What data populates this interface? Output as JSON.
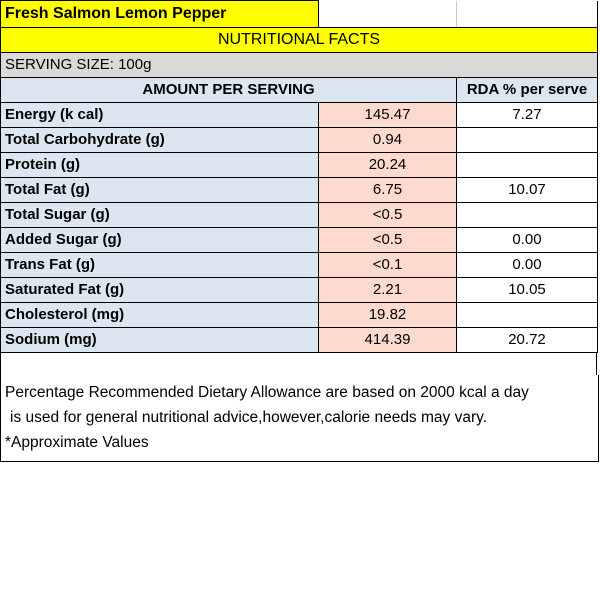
{
  "product_name": "Fresh Salmon Lemon Pepper",
  "section_title": "NUTRITIONAL FACTS",
  "serving_size": "SERVING SIZE: 100g",
  "columns": {
    "amount": "AMOUNT PER SERVING",
    "rda": "RDA % per serve"
  },
  "rows": [
    {
      "label": "Energy (k cal)",
      "value": "145.47",
      "rda": "7.27"
    },
    {
      "label": "Total Carbohydrate (g)",
      "value": "0.94",
      "rda": ""
    },
    {
      "label": "Protein (g)",
      "value": "20.24",
      "rda": ""
    },
    {
      "label": "Total Fat (g)",
      "value": "6.75",
      "rda": "10.07"
    },
    {
      "label": "Total Sugar (g)",
      "value": "<0.5",
      "rda": ""
    },
    {
      "label": "Added Sugar (g)",
      "value": "<0.5",
      "rda": "0.00"
    },
    {
      "label": "Trans Fat (g)",
      "value": "<0.1",
      "rda": "0.00"
    },
    {
      "label": "Saturated Fat (g)",
      "value": "2.21",
      "rda": "10.05"
    },
    {
      "label": "Cholesterol (mg)",
      "value": "19.82",
      "rda": ""
    },
    {
      "label": "Sodium (mg)",
      "value": "414.39",
      "rda": "20.72"
    }
  ],
  "footnote": {
    "line1": "Percentage Recommended Dietary Allowance are based on 2000 kcal a day",
    "line2": "is used for general nutritional advice,however,calorie needs may vary.",
    "line3": "*Approximate Values"
  },
  "colors": {
    "title_bg": "#ffff00",
    "label_bg": "#dce6f1",
    "value_bg": "#fcdacd",
    "serving_bg": "#d9d9d9"
  }
}
